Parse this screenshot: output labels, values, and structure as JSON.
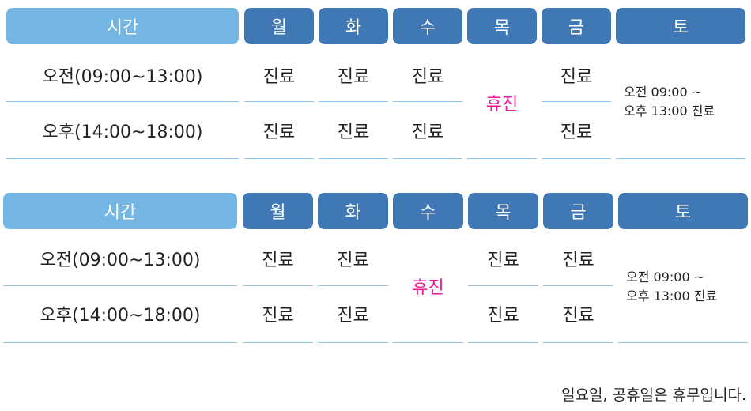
{
  "headers": {
    "time": "시간",
    "mon": "월",
    "tue": "화",
    "wed": "수",
    "thu": "목",
    "fri": "금",
    "sat": "토"
  },
  "rows": {
    "morning": "오전(09:00~13:00)",
    "afternoon": "오후(14:00~18:00)"
  },
  "open_label": "진료",
  "closed_label": "휴진",
  "saturday": {
    "line1": "오전 09:00 ~",
    "line2": "오후 13:00 진료"
  },
  "schedule1_closed_day": "목",
  "schedule2_closed_day": "수",
  "footnote": "일요일, 공휴일은 휴무입니다.",
  "colors": {
    "header_blue": "#3f78b5",
    "time_header_blue": "#74b6e3",
    "closed_text": "#e8199a",
    "divider": "#8ec5ea"
  }
}
